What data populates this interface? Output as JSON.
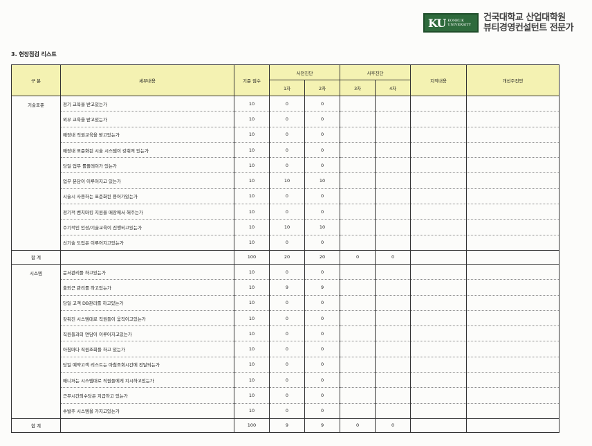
{
  "logo": {
    "mark": "KU",
    "sub": "KONKUK UNIVERSITY",
    "line1": "건국대학교 산업대학원",
    "line2": "뷰티경영컨설턴트 전문가",
    "color": "#2e6a3c"
  },
  "section_title": "3. 현장점검 리스트",
  "header": {
    "category": "구 분",
    "detail": "세부내용",
    "base_score": "기준 점수",
    "pre_diag": "사전진단",
    "post_diag": "사후진단",
    "r1": "1차",
    "r2": "2차",
    "r3": "3차",
    "r4": "4차",
    "findings": "지적내용",
    "improvement": "개선주진안",
    "fill_color": "#f4f2b2"
  },
  "groups": [
    {
      "category": "기술표준",
      "items": [
        {
          "detail": "정기 교육을 받고있는가",
          "base": "10",
          "r1": "0",
          "r2": "0"
        },
        {
          "detail": "외부 교육을 받고있는가",
          "base": "10",
          "r1": "0",
          "r2": "0"
        },
        {
          "detail": "매장내 직원교육을 받고있는가",
          "base": "10",
          "r1": "0",
          "r2": "0"
        },
        {
          "detail": "매장내 표준화된 시술 시스템이 갖춰져 있는가",
          "base": "10",
          "r1": "0",
          "r2": "0"
        },
        {
          "detail": "당일 업무 롤플레이가 있는가",
          "base": "10",
          "r1": "0",
          "r2": "0"
        },
        {
          "detail": "업무 분담이 이루어지고 있는가",
          "base": "10",
          "r1": "10",
          "r2": "10"
        },
        {
          "detail": "시술시 사용하는 표준화된 용어가있는가",
          "base": "10",
          "r1": "0",
          "r2": "0"
        },
        {
          "detail": "정기적 벤치마킹 지원을 매장에서 해주는가",
          "base": "10",
          "r1": "0",
          "r2": "0"
        },
        {
          "detail": "주기적인 인성/기술교육이 진행되고있는가",
          "base": "10",
          "r1": "10",
          "r2": "10"
        },
        {
          "detail": "신기술 도입은 이루어지고있는가",
          "base": "10",
          "r1": "0",
          "r2": "0"
        }
      ],
      "total": {
        "label": "합 계",
        "base": "100",
        "r1": "20",
        "r2": "20",
        "r3": "0",
        "r4": "0"
      }
    },
    {
      "category": "시스템",
      "items": [
        {
          "detail": "문서관리를 하고있는가",
          "base": "10",
          "r1": "0",
          "r2": "0"
        },
        {
          "detail": "출퇴근 관리를 하고있는가",
          "base": "10",
          "r1": "9",
          "r2": "9"
        },
        {
          "detail": "당일 고객 DB관리를 하고있는가",
          "base": "10",
          "r1": "0",
          "r2": "0"
        },
        {
          "detail": "갖춰진 시스템대로 직원들이 움직이고있는가",
          "base": "10",
          "r1": "0",
          "r2": "0"
        },
        {
          "detail": "직원들과의 면담이 이루어지고있는가",
          "base": "10",
          "r1": "0",
          "r2": "0"
        },
        {
          "detail": "아침마다 직원조회를 하고 있는가",
          "base": "10",
          "r1": "0",
          "r2": "0"
        },
        {
          "detail": "당일 예약고객 리스트는 아침조회시간에 전달되는가",
          "base": "10",
          "r1": "0",
          "r2": "0"
        },
        {
          "detail": "매니저는 시스템대로 직원들에게 지시하고있는가",
          "base": "10",
          "r1": "0",
          "r2": "0"
        },
        {
          "detail": "근무시간외수당은 지급하고 있는가",
          "base": "10",
          "r1": "0",
          "r2": "0"
        },
        {
          "detail": "수발주 시스템을 가지고있는가",
          "base": "10",
          "r1": "0",
          "r2": "0"
        }
      ],
      "total": {
        "label": "합 계",
        "base": "100",
        "r1": "9",
        "r2": "9",
        "r3": "0",
        "r4": "0"
      }
    }
  ]
}
